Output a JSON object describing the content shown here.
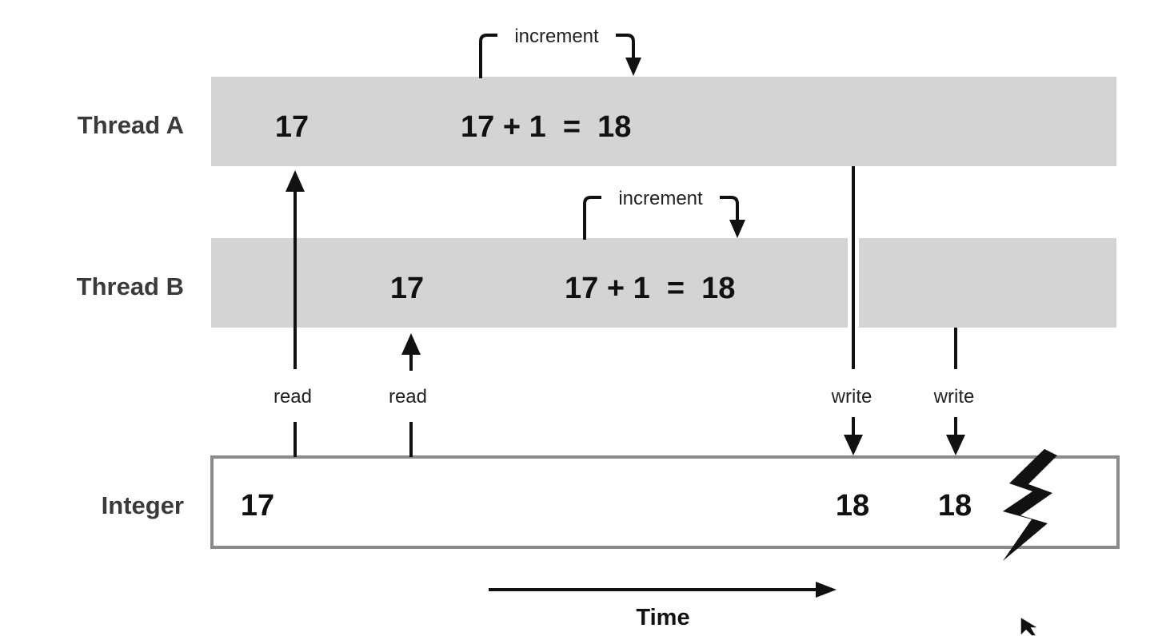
{
  "rows": {
    "thread_a": "Thread A",
    "thread_b": "Thread B",
    "integer": "Integer"
  },
  "thread_a": {
    "read_value": "17",
    "computation": "17 + 1  =  18",
    "increment_label": "increment"
  },
  "thread_b": {
    "read_value": "17",
    "computation": "17 + 1  =  18",
    "increment_label": "increment"
  },
  "integer": {
    "initial_value": "17",
    "after_write_a": "18",
    "after_write_b": "18"
  },
  "arrows": {
    "read_a": "read",
    "read_b": "read",
    "write_a": "write",
    "write_b": "write"
  },
  "time_label": "Time",
  "colors": {
    "thread_lane": "#d4d4d4",
    "integer_border": "#8a8a8a",
    "ink": "#111111"
  }
}
